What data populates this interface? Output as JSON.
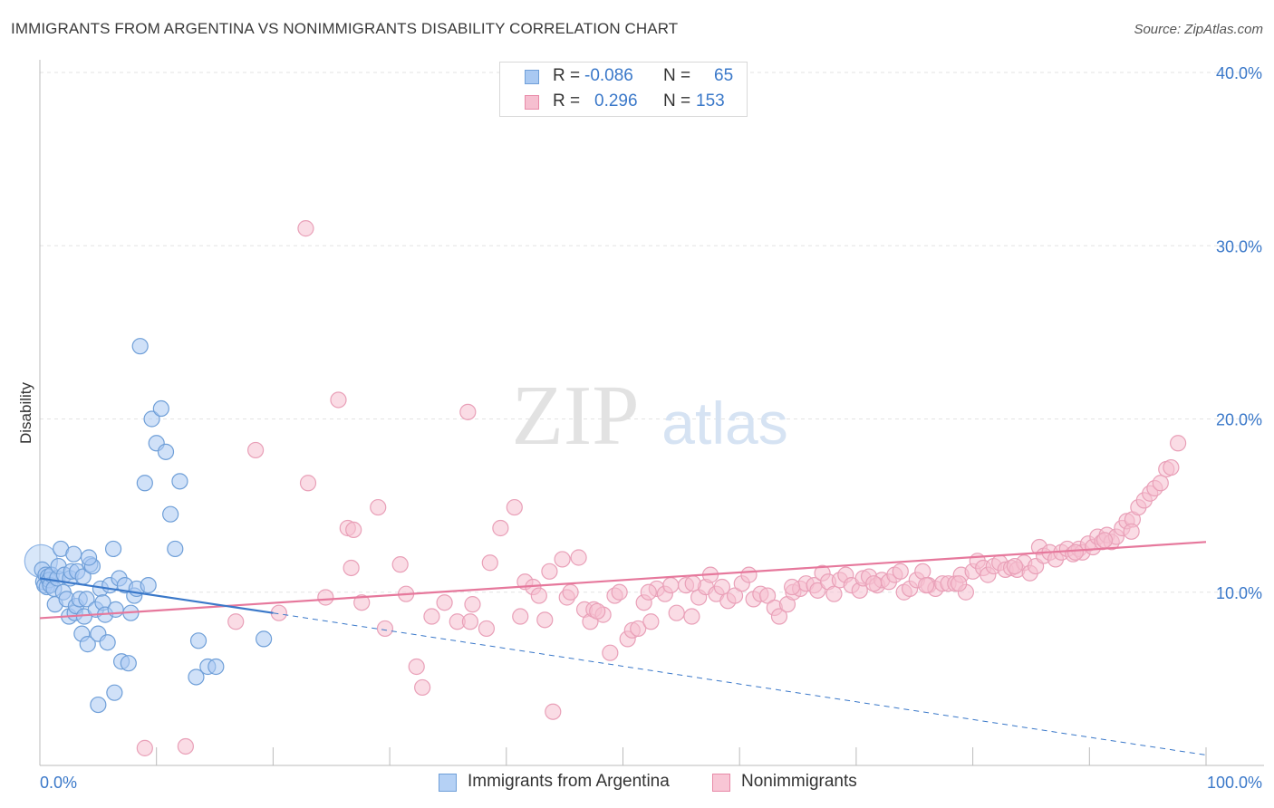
{
  "title": "IMMIGRANTS FROM ARGENTINA VS NONIMMIGRANTS DISABILITY CORRELATION CHART",
  "source": "Source: ZipAtlas.com",
  "watermark": {
    "zip": "ZIP",
    "atlas": "atlas"
  },
  "legend_stats": [
    {
      "r_label": "R =",
      "r_value": "-0.086",
      "n_label": "N =",
      "n_value": "65",
      "color": "#a9c9f2",
      "border": "#6f9fd8"
    },
    {
      "r_label": "R =",
      "r_value": "0.296",
      "n_label": "N =",
      "n_value": "153",
      "color": "#f6bfd0",
      "border": "#e88aa8"
    }
  ],
  "legend_bottom": [
    {
      "label": "Immigrants from Argentina",
      "color": "#b5d1f5",
      "border": "#6f9fd8"
    },
    {
      "label": "Nonimmigrants",
      "color": "#f8c6d5",
      "border": "#e88aa8"
    }
  ],
  "chart_data": {
    "type": "scatter",
    "title": "IMMIGRANTS FROM ARGENTINA VS NONIMMIGRANTS DISABILITY CORRELATION CHART",
    "xlabel": "",
    "ylabel": "Disability",
    "xlim": [
      0,
      100
    ],
    "ylim": [
      0,
      40
    ],
    "x_tick_labels": [
      "0.0%",
      "100.0%"
    ],
    "y_ticks": [
      10,
      20,
      30,
      40
    ],
    "y_tick_labels": [
      "10.0%",
      "20.0%",
      "30.0%",
      "40.0%"
    ],
    "grid": true,
    "legend_position": "bottom",
    "colors": {
      "blue": "#3a78c9",
      "pink": "#e6789c",
      "blue_fill": "#a9c9f2",
      "pink_fill": "#f6bfd0"
    },
    "series": [
      {
        "name": "Immigrants from Argentina",
        "trend": {
          "x": [
            0,
            20
          ],
          "y": [
            10.8,
            8.8
          ],
          "extended": {
            "x": [
              20,
              100
            ],
            "y": [
              8.8,
              0.6
            ]
          }
        },
        "points": [
          [
            0.2,
            11.3
          ],
          [
            0.3,
            10.6
          ],
          [
            0.4,
            10.4
          ],
          [
            0.5,
            11.0
          ],
          [
            0.6,
            10.3
          ],
          [
            0.7,
            10.9
          ],
          [
            0.8,
            10.7
          ],
          [
            0.9,
            10.4
          ],
          [
            1.0,
            11.0
          ],
          [
            1.2,
            10.2
          ],
          [
            1.3,
            9.3
          ],
          [
            1.5,
            10.8
          ],
          [
            1.6,
            11.5
          ],
          [
            1.8,
            12.5
          ],
          [
            2.0,
            10.0
          ],
          [
            2.1,
            11.0
          ],
          [
            2.3,
            9.6
          ],
          [
            2.5,
            8.6
          ],
          [
            2.6,
            10.8
          ],
          [
            2.7,
            11.2
          ],
          [
            2.9,
            12.2
          ],
          [
            3.0,
            8.8
          ],
          [
            3.1,
            9.2
          ],
          [
            3.2,
            11.2
          ],
          [
            3.4,
            9.6
          ],
          [
            3.6,
            7.6
          ],
          [
            3.7,
            10.9
          ],
          [
            3.8,
            8.6
          ],
          [
            4.0,
            9.6
          ],
          [
            4.1,
            7.0
          ],
          [
            4.3,
            11.6
          ],
          [
            4.5,
            11.5
          ],
          [
            4.8,
            9.0
          ],
          [
            5.0,
            7.6
          ],
          [
            5.2,
            10.2
          ],
          [
            5.4,
            9.4
          ],
          [
            5.6,
            8.7
          ],
          [
            5.8,
            7.1
          ],
          [
            6.0,
            10.4
          ],
          [
            6.3,
            12.5
          ],
          [
            6.5,
            9.0
          ],
          [
            6.8,
            10.8
          ],
          [
            7.0,
            6.0
          ],
          [
            7.3,
            10.4
          ],
          [
            7.6,
            5.9
          ],
          [
            7.8,
            8.8
          ],
          [
            8.1,
            9.8
          ],
          [
            8.3,
            10.2
          ],
          [
            8.6,
            24.2
          ],
          [
            9.0,
            16.3
          ],
          [
            9.3,
            10.4
          ],
          [
            9.6,
            20.0
          ],
          [
            10.0,
            18.6
          ],
          [
            10.4,
            20.6
          ],
          [
            10.8,
            18.1
          ],
          [
            11.2,
            14.5
          ],
          [
            11.6,
            12.5
          ],
          [
            12.0,
            16.4
          ],
          [
            13.4,
            5.1
          ],
          [
            13.6,
            7.2
          ],
          [
            14.4,
            5.7
          ],
          [
            15.1,
            5.7
          ],
          [
            19.2,
            7.3
          ],
          [
            6.4,
            4.2
          ],
          [
            5.0,
            3.5
          ],
          [
            4.2,
            12.0
          ]
        ]
      },
      {
        "name": "Nonimmigrants",
        "trend": {
          "x": [
            0,
            100
          ],
          "y": [
            8.5,
            12.9
          ]
        },
        "points": [
          [
            9.0,
            1.0
          ],
          [
            12.5,
            1.1
          ],
          [
            16.8,
            8.3
          ],
          [
            18.5,
            18.2
          ],
          [
            20.5,
            8.8
          ],
          [
            22.8,
            31.0
          ],
          [
            23.0,
            16.3
          ],
          [
            24.5,
            9.7
          ],
          [
            25.6,
            21.1
          ],
          [
            26.4,
            13.7
          ],
          [
            26.7,
            11.4
          ],
          [
            26.9,
            13.6
          ],
          [
            27.6,
            9.4
          ],
          [
            29.0,
            14.9
          ],
          [
            29.6,
            7.9
          ],
          [
            30.9,
            11.6
          ],
          [
            31.4,
            9.9
          ],
          [
            32.3,
            5.7
          ],
          [
            32.8,
            4.5
          ],
          [
            33.6,
            8.6
          ],
          [
            34.7,
            9.4
          ],
          [
            35.8,
            8.3
          ],
          [
            36.7,
            20.4
          ],
          [
            36.9,
            8.3
          ],
          [
            37.1,
            9.3
          ],
          [
            38.3,
            7.9
          ],
          [
            38.6,
            11.7
          ],
          [
            39.5,
            13.7
          ],
          [
            40.7,
            14.9
          ],
          [
            41.2,
            8.6
          ],
          [
            41.6,
            10.6
          ],
          [
            42.3,
            10.3
          ],
          [
            42.8,
            9.8
          ],
          [
            43.3,
            8.4
          ],
          [
            43.7,
            11.2
          ],
          [
            44.8,
            11.9
          ],
          [
            45.2,
            9.7
          ],
          [
            45.5,
            10.0
          ],
          [
            46.2,
            12.0
          ],
          [
            46.7,
            9.0
          ],
          [
            47.2,
            8.3
          ],
          [
            47.5,
            9.0
          ],
          [
            48.3,
            8.7
          ],
          [
            48.9,
            6.5
          ],
          [
            49.3,
            9.8
          ],
          [
            49.7,
            10.0
          ],
          [
            50.4,
            7.3
          ],
          [
            50.8,
            7.8
          ],
          [
            51.3,
            7.9
          ],
          [
            51.8,
            9.4
          ],
          [
            52.4,
            8.3
          ],
          [
            52.9,
            10.2
          ],
          [
            53.6,
            9.9
          ],
          [
            54.1,
            10.4
          ],
          [
            54.6,
            8.8
          ],
          [
            55.4,
            10.4
          ],
          [
            55.9,
            8.6
          ],
          [
            56.5,
            9.7
          ],
          [
            57.1,
            10.3
          ],
          [
            57.5,
            11.0
          ],
          [
            58.0,
            9.9
          ],
          [
            58.5,
            10.3
          ],
          [
            59.0,
            9.5
          ],
          [
            59.6,
            9.8
          ],
          [
            60.2,
            10.5
          ],
          [
            60.8,
            11.0
          ],
          [
            61.2,
            9.6
          ],
          [
            61.8,
            9.9
          ],
          [
            62.4,
            9.8
          ],
          [
            63.0,
            9.1
          ],
          [
            63.4,
            8.6
          ],
          [
            64.1,
            9.3
          ],
          [
            64.6,
            10.0
          ],
          [
            65.2,
            10.2
          ],
          [
            65.7,
            10.5
          ],
          [
            66.4,
            10.4
          ],
          [
            66.7,
            10.1
          ],
          [
            67.1,
            11.1
          ],
          [
            67.6,
            10.6
          ],
          [
            68.1,
            9.9
          ],
          [
            68.6,
            10.7
          ],
          [
            69.1,
            11.0
          ],
          [
            69.6,
            10.4
          ],
          [
            70.3,
            10.1
          ],
          [
            70.6,
            10.8
          ],
          [
            71.1,
            10.9
          ],
          [
            71.8,
            10.4
          ],
          [
            72.2,
            10.7
          ],
          [
            72.8,
            10.6
          ],
          [
            73.3,
            11.0
          ],
          [
            73.8,
            11.2
          ],
          [
            74.1,
            10.0
          ],
          [
            74.6,
            10.2
          ],
          [
            75.2,
            10.7
          ],
          [
            75.7,
            11.2
          ],
          [
            76.2,
            10.4
          ],
          [
            76.8,
            10.2
          ],
          [
            77.4,
            10.5
          ],
          [
            77.9,
            10.5
          ],
          [
            78.5,
            10.5
          ],
          [
            79.0,
            11.0
          ],
          [
            79.4,
            10.0
          ],
          [
            80.0,
            11.2
          ],
          [
            80.4,
            11.8
          ],
          [
            80.9,
            11.4
          ],
          [
            81.3,
            11.0
          ],
          [
            81.8,
            11.5
          ],
          [
            82.3,
            11.7
          ],
          [
            82.8,
            11.3
          ],
          [
            83.3,
            11.4
          ],
          [
            83.8,
            11.3
          ],
          [
            84.4,
            11.7
          ],
          [
            84.9,
            11.1
          ],
          [
            85.4,
            11.5
          ],
          [
            85.7,
            12.6
          ],
          [
            86.1,
            12.1
          ],
          [
            86.6,
            12.3
          ],
          [
            87.1,
            11.9
          ],
          [
            87.6,
            12.3
          ],
          [
            88.1,
            12.5
          ],
          [
            88.6,
            12.2
          ],
          [
            89.1,
            12.5
          ],
          [
            89.4,
            12.3
          ],
          [
            89.9,
            12.8
          ],
          [
            90.3,
            12.6
          ],
          [
            90.7,
            13.2
          ],
          [
            91.1,
            12.9
          ],
          [
            91.5,
            13.3
          ],
          [
            91.9,
            12.9
          ],
          [
            92.3,
            13.2
          ],
          [
            92.8,
            13.7
          ],
          [
            93.2,
            14.1
          ],
          [
            93.7,
            14.2
          ],
          [
            94.2,
            14.9
          ],
          [
            94.7,
            15.3
          ],
          [
            95.2,
            15.7
          ],
          [
            95.6,
            16.0
          ],
          [
            96.1,
            16.3
          ],
          [
            96.6,
            17.1
          ],
          [
            97.0,
            17.2
          ],
          [
            97.6,
            18.6
          ],
          [
            93.6,
            13.5
          ],
          [
            91.3,
            13.0
          ],
          [
            88.8,
            12.3
          ],
          [
            83.6,
            11.5
          ],
          [
            78.8,
            10.5
          ],
          [
            76.0,
            10.4
          ],
          [
            71.5,
            10.5
          ],
          [
            64.5,
            10.3
          ],
          [
            56.0,
            10.5
          ],
          [
            52.2,
            10.0
          ],
          [
            47.8,
            8.9
          ],
          [
            44.0,
            3.1
          ]
        ]
      }
    ]
  }
}
